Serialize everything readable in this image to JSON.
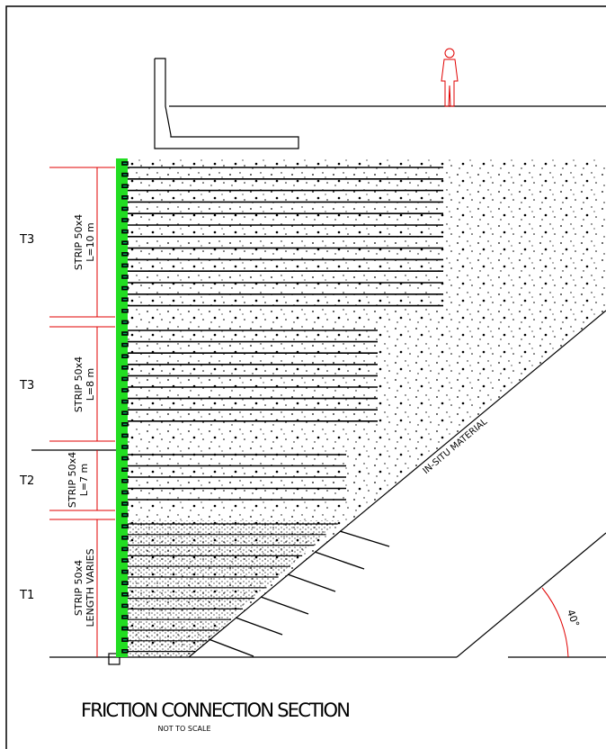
{
  "zones": [
    {
      "label": "T3",
      "strip": "STRIP 50x4",
      "length": "L=10 m"
    },
    {
      "label": "T3",
      "strip": "STRIP 50x4",
      "length": "L=8 m"
    },
    {
      "label": "T2",
      "strip": "STRIP 50x4",
      "length": "L=7 m"
    },
    {
      "label": "T1",
      "strip": "STRIP 50x4",
      "length": "LENGTH VARIES"
    }
  ],
  "annotations": {
    "material": "IN-SITU MATERIAL",
    "angle": "40°"
  },
  "footer": {
    "title": "FRICTION CONNECTION SECTION",
    "scale": "NOT TO SCALE"
  }
}
